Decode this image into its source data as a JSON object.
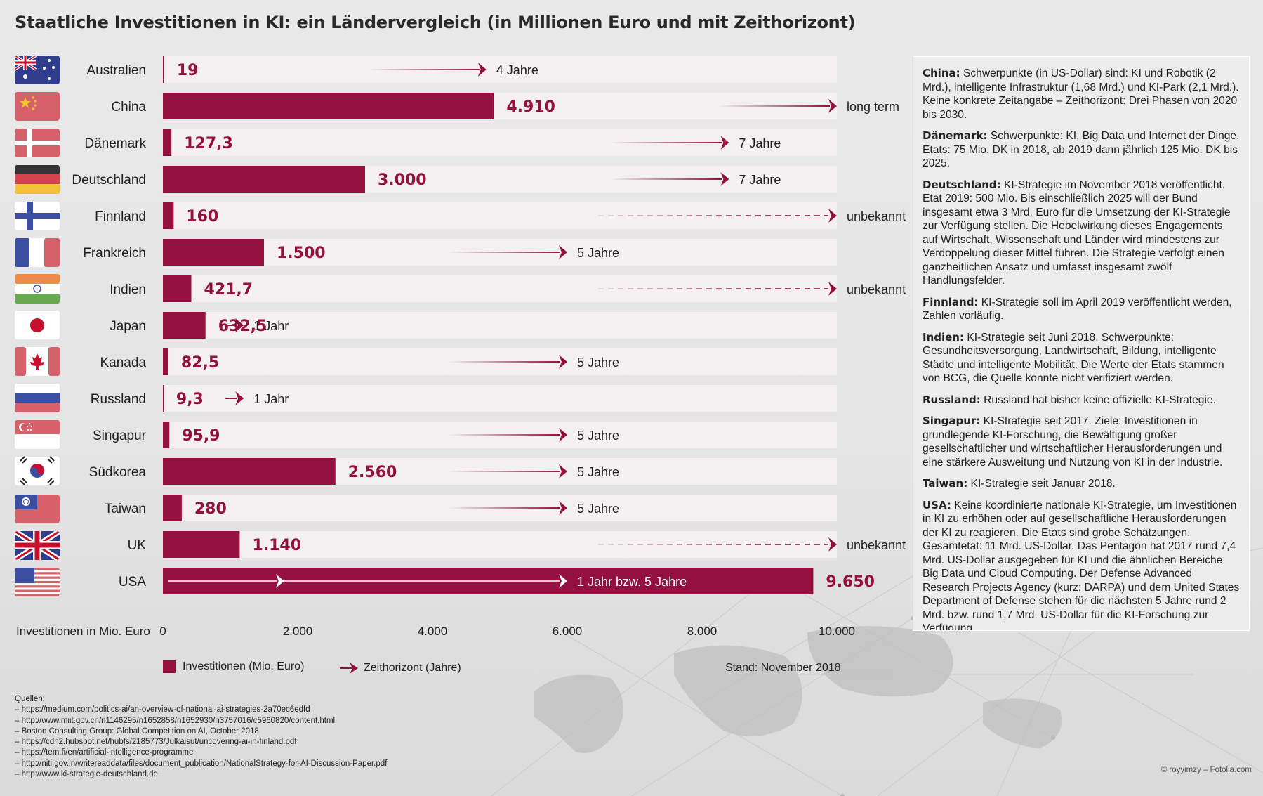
{
  "title": "Staatliche Investitionen in KI: ein Ländervergleich (in Millionen Euro und mit Zeithorizont)",
  "colors": {
    "bar": "#93103f",
    "track": "#f4f0f1",
    "arrow": "#93103f",
    "text": "#222222"
  },
  "chart_data": {
    "type": "bar",
    "orientation": "horizontal",
    "xlabel": "Investitionen in Mio. Euro",
    "xlim": [
      0,
      10000
    ],
    "xticks": [
      0,
      2000,
      4000,
      6000,
      8000,
      10000
    ],
    "xtick_labels": [
      "0",
      "2.000",
      "4.000",
      "6.000",
      "8.000",
      "10.000"
    ],
    "grid": false,
    "categories": [
      "Australien",
      "China",
      "Dänemark",
      "Deutschland",
      "Finnland",
      "Frankreich",
      "Indien",
      "Japan",
      "Kanada",
      "Russland",
      "Singapur",
      "Südkorea",
      "Taiwan",
      "UK",
      "USA"
    ],
    "values": [
      19,
      4910,
      127.3,
      3000,
      160,
      1500,
      421.7,
      632.5,
      82.5,
      9.3,
      95.9,
      2560,
      280,
      1140,
      9650
    ],
    "value_labels": [
      "19",
      "4.910",
      "127,3",
      "3.000",
      "160",
      "1.500",
      "421,7",
      "632,5",
      "82,5",
      "9,3",
      "95,9",
      "2.560",
      "280",
      "1.140",
      "9.650"
    ],
    "horizon_labels": [
      "4 Jahre",
      "long term",
      "7 Jahre",
      "7 Jahre",
      "unbekannt",
      "5 Jahre",
      "unbekannt",
      "1 Jahr",
      "5 Jahre",
      "1 Jahr",
      "5 Jahre",
      "5 Jahre",
      "5 Jahre",
      "unbekannt",
      "1 Jahr bzw. 5 Jahre"
    ],
    "horizon_years": [
      4,
      null,
      7,
      7,
      null,
      5,
      null,
      1,
      5,
      1,
      5,
      5,
      5,
      null,
      5
    ],
    "horizon_dashed": [
      false,
      false,
      false,
      false,
      true,
      false,
      true,
      false,
      false,
      false,
      false,
      false,
      false,
      true,
      false
    ],
    "flags": [
      "australia-flag-icon",
      "china-flag-icon",
      "denmark-flag-icon",
      "germany-flag-icon",
      "finland-flag-icon",
      "france-flag-icon",
      "india-flag-icon",
      "japan-flag-icon",
      "canada-flag-icon",
      "russia-flag-icon",
      "singapore-flag-icon",
      "south-korea-flag-icon",
      "taiwan-flag-icon",
      "uk-flag-icon",
      "usa-flag-icon"
    ],
    "legend": {
      "bar_label": "Investitionen (Mio. Euro)",
      "arrow_label": "Zeithorizont (Jahre)",
      "placement": "bottom-left"
    }
  },
  "stand": "Stand: November 2018",
  "sources": {
    "heading": "Quellen:",
    "items": [
      "–  https://medium.com/politics-ai/an-overview-of-national-ai-strategies-2a70ec6edfd",
      "–  http://www.miit.gov.cn/n1146295/n1652858/n1652930/n3757016/c5960820/content.html",
      "–  Boston Consulting Group: Global Competition on AI, October 2018",
      "–  https://cdn2.hubspot.net/hubfs/2185773/Julkaisut/uncovering-ai-in-finland.pdf",
      "–  https://tem.fi/en/artificial-intelligence-programme",
      "–  http://niti.gov.in/writereaddata/files/document_publication/NationalStrategy-for-AI-Discussion-Paper.pdf",
      "–  http://www.ki-strategie-deutschland.de"
    ]
  },
  "notes": [
    {
      "country": "China:",
      "text": " Schwerpunkte (in US-Dollar) sind: KI und Robotik (2 Mrd.), intelligente Infrastruktur (1,68 Mrd.) und KI-Park (2,1 Mrd.). Keine konkrete Zeitangabe – Zeithorizont: Drei Phasen von 2020 bis 2030."
    },
    {
      "country": "Dänemark:",
      "text": " Schwerpunkte: KI, Big Data und Internet der Dinge. Etats: 75 Mio. DK in 2018, ab 2019 dann jährlich 125 Mio. DK bis 2025."
    },
    {
      "country": "Deutschland:",
      "text": " KI-Strategie im November 2018 veröffentlicht. Etat 2019: 500 Mio. Bis einschließlich 2025 will der Bund insgesamt etwa 3 Mrd. Euro für die Umsetzung der KI-Strategie zur Verfügung stellen. Die Hebelwirkung dieses Engagements auf Wirtschaft, Wissenschaft und Länder wird mindestens zur Verdoppelung dieser Mittel führen. Die Strategie verfolgt einen ganzheitlichen Ansatz und umfasst insgesamt zwölf Handlungsfelder."
    },
    {
      "country": "Finnland:",
      "text": " KI-Strategie soll im April 2019 veröffentlicht werden, Zahlen vorläufig."
    },
    {
      "country": "Indien:",
      "text": " KI-Strategie seit Juni 2018. Schwerpunkte: Gesundheitsversorgung, Landwirtschaft, Bildung, intelligente Städte und intelligente Mobilität. Die Werte der Etats stammen von BCG, die Quelle konnte nicht verifiziert werden."
    },
    {
      "country": "Russland:",
      "text": " Russland hat bisher keine offizielle KI-Strategie."
    },
    {
      "country": "Singapur:",
      "text": " KI-Strategie seit 2017. Ziele: Investitionen in grundlegende KI-Forschung, die Bewältigung großer gesellschaftlicher und wirtschaftlicher Herausforderungen und eine stärkere Ausweitung und Nutzung von KI in der Industrie."
    },
    {
      "country": "Taiwan:",
      "text": " KI-Strategie seit Januar 2018."
    },
    {
      "country": "USA:",
      "text": " Keine koordinierte nationale KI-Strategie, um Investitionen in KI zu erhöhen oder auf gesellschaftliche Herausforderungen der KI zu reagieren. Die Etats sind grobe Schätzungen. Gesamtetat: 11 Mrd. US-Dollar. Das Pentagon hat 2017 rund 7,4 Mrd. US-Dollar ausgegeben für KI und die ähnlichen Bereiche Big Data und Cloud Computing. Der Defense Advanced Research Projects Agency (kurz: DARPA) und dem United States Department of Defense stehen für die nächsten 5 Jahre rund 2 Mrd. bzw. rund 1,7 Mrd. US-Dollar für die KI-Forschung zur Verfügung."
    }
  ],
  "credit": "© royyimzy – Fotolia.com"
}
